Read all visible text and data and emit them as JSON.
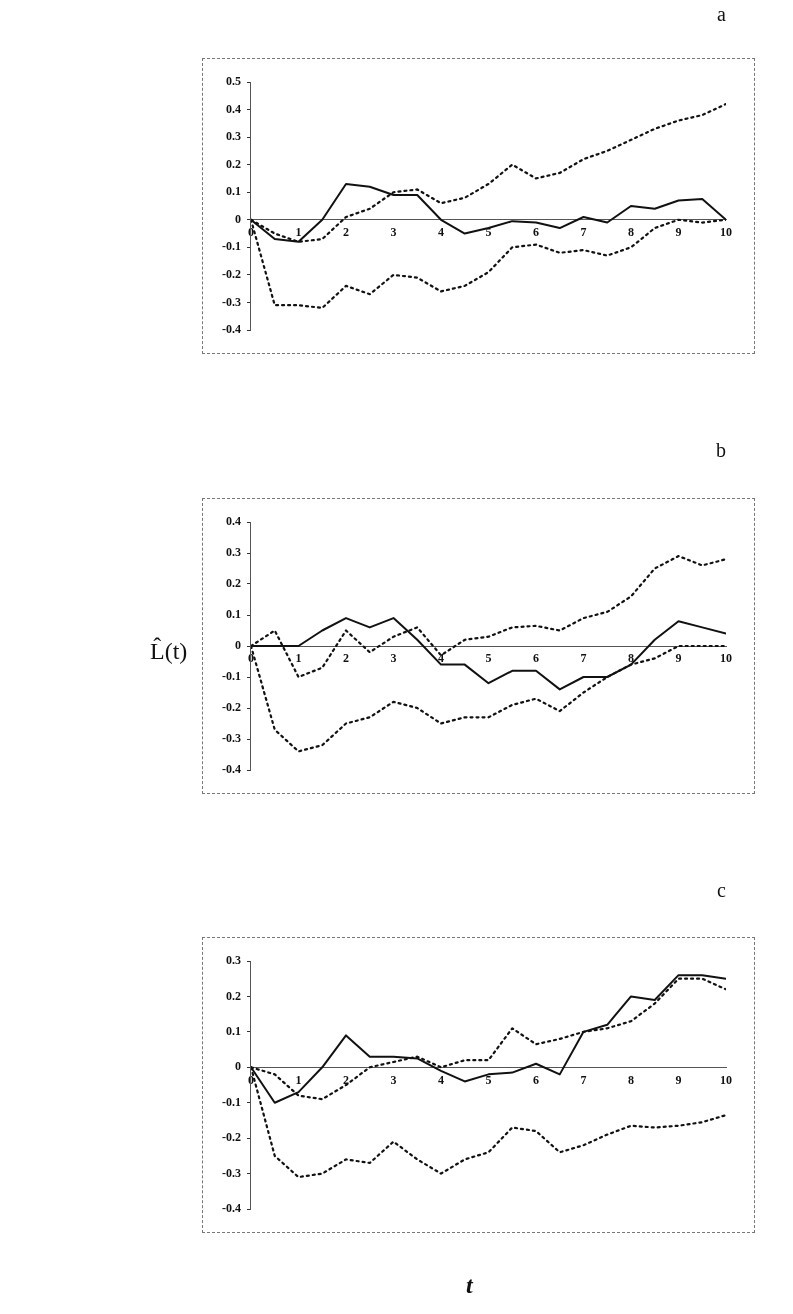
{
  "chart_data": [
    {
      "type": "line",
      "title": "a",
      "x": [
        0,
        0.5,
        1,
        1.5,
        2,
        2.5,
        3,
        3.5,
        4,
        4.5,
        5,
        5.5,
        6,
        6.5,
        7,
        7.5,
        8,
        8.5,
        9,
        9.5,
        10
      ],
      "xlim": [
        0,
        10
      ],
      "xticks": [
        0,
        1,
        2,
        3,
        4,
        5,
        6,
        7,
        8,
        9,
        10
      ],
      "ylim": [
        -0.4,
        0.5
      ],
      "yticks": [
        -0.4,
        -0.3,
        -0.2,
        -0.1,
        0,
        0.1,
        0.2,
        0.3,
        0.4,
        0.5
      ],
      "marker": "none",
      "series": [
        {
          "color": "#111111",
          "line_style": "solid",
          "values": [
            0,
            -0.07,
            -0.08,
            0,
            0.13,
            0.12,
            0.09,
            0.09,
            0,
            -0.05,
            -0.03,
            -0.005,
            -0.01,
            -0.03,
            0.01,
            -0.01,
            0.05,
            0.04,
            0.07,
            0.075,
            0
          ]
        },
        {
          "color": "#111111",
          "line_style": "dotted",
          "values": [
            0,
            -0.05,
            -0.08,
            -0.07,
            0.01,
            0.04,
            0.1,
            0.11,
            0.06,
            0.08,
            0.13,
            0.2,
            0.15,
            0.17,
            0.22,
            0.25,
            0.29,
            0.33,
            0.36,
            0.38,
            0.42
          ]
        },
        {
          "color": "#111111",
          "line_style": "dotted",
          "values": [
            0,
            -0.31,
            -0.31,
            -0.32,
            -0.24,
            -0.27,
            -0.2,
            -0.21,
            -0.26,
            -0.24,
            -0.19,
            -0.1,
            -0.09,
            -0.12,
            -0.11,
            -0.13,
            -0.1,
            -0.03,
            0,
            -0.01,
            0
          ]
        }
      ]
    },
    {
      "type": "line",
      "title": "b",
      "ylabel": "L̂(t)",
      "x": [
        0,
        0.5,
        1,
        1.5,
        2,
        2.5,
        3,
        3.5,
        4,
        4.5,
        5,
        5.5,
        6,
        6.5,
        7,
        7.5,
        8,
        8.5,
        9,
        9.5,
        10
      ],
      "xlim": [
        0,
        10
      ],
      "xticks": [
        0,
        1,
        2,
        3,
        4,
        5,
        6,
        7,
        8,
        9,
        10
      ],
      "ylim": [
        -0.4,
        0.4
      ],
      "yticks": [
        -0.4,
        -0.3,
        -0.2,
        -0.1,
        0,
        0.1,
        0.2,
        0.3,
        0.4
      ],
      "marker": "none",
      "series": [
        {
          "color": "#111111",
          "line_style": "solid",
          "values": [
            0,
            0,
            0,
            0.05,
            0.09,
            0.06,
            0.09,
            0.02,
            -0.06,
            -0.06,
            -0.12,
            -0.08,
            -0.08,
            -0.14,
            -0.1,
            -0.1,
            -0.06,
            0.02,
            0.08,
            0.06,
            0.04
          ]
        },
        {
          "color": "#111111",
          "line_style": "dotted",
          "values": [
            0,
            0.05,
            -0.1,
            -0.07,
            0.05,
            -0.02,
            0.03,
            0.06,
            -0.03,
            0.02,
            0.03,
            0.06,
            0.065,
            0.05,
            0.09,
            0.11,
            0.16,
            0.25,
            0.29,
            0.26,
            0.28
          ]
        },
        {
          "color": "#111111",
          "line_style": "dotted",
          "values": [
            0,
            -0.27,
            -0.34,
            -0.32,
            -0.25,
            -0.23,
            -0.18,
            -0.2,
            -0.25,
            -0.23,
            -0.23,
            -0.19,
            -0.17,
            -0.21,
            -0.15,
            -0.1,
            -0.06,
            -0.04,
            0,
            0,
            0
          ]
        }
      ]
    },
    {
      "type": "line",
      "title": "c",
      "xlabel": "t",
      "x": [
        0,
        0.5,
        1,
        1.5,
        2,
        2.5,
        3,
        3.5,
        4,
        4.5,
        5,
        5.5,
        6,
        6.5,
        7,
        7.5,
        8,
        8.5,
        9,
        9.5,
        10
      ],
      "xlim": [
        0,
        10
      ],
      "xticks": [
        0,
        1,
        2,
        3,
        4,
        5,
        6,
        7,
        8,
        9,
        10
      ],
      "ylim": [
        -0.4,
        0.3
      ],
      "yticks": [
        -0.4,
        -0.3,
        -0.2,
        -0.1,
        0,
        0.1,
        0.2,
        0.3
      ],
      "marker": "none",
      "series": [
        {
          "color": "#111111",
          "line_style": "solid",
          "values": [
            0,
            -0.1,
            -0.07,
            0,
            0.09,
            0.03,
            0.03,
            0.025,
            -0.01,
            -0.04,
            -0.02,
            -0.015,
            0.01,
            -0.02,
            0.1,
            0.12,
            0.2,
            0.19,
            0.26,
            0.26,
            0.25
          ]
        },
        {
          "color": "#111111",
          "line_style": "dotted",
          "values": [
            0,
            -0.02,
            -0.08,
            -0.09,
            -0.05,
            0,
            0.015,
            0.03,
            0,
            0.02,
            0.02,
            0.11,
            0.065,
            0.08,
            0.1,
            0.11,
            0.13,
            0.18,
            0.25,
            0.25,
            0.22
          ]
        },
        {
          "color": "#111111",
          "line_style": "dotted",
          "values": [
            0,
            -0.25,
            -0.31,
            -0.3,
            -0.26,
            -0.27,
            -0.21,
            -0.26,
            -0.3,
            -0.26,
            -0.24,
            -0.17,
            -0.18,
            -0.24,
            -0.22,
            -0.19,
            -0.165,
            -0.17,
            -0.165,
            -0.155,
            -0.135
          ]
        }
      ]
    }
  ]
}
